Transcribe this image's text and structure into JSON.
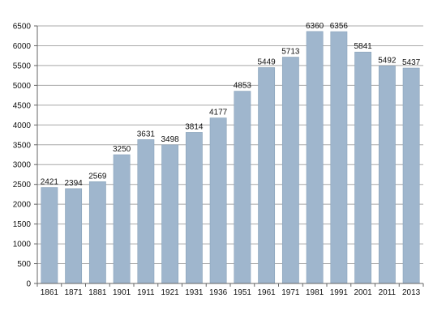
{
  "chart_data": {
    "type": "bar",
    "categories": [
      "1861",
      "1871",
      "1881",
      "1901",
      "1911",
      "1921",
      "1931",
      "1936",
      "1951",
      "1961",
      "1971",
      "1981",
      "1991",
      "2001",
      "2011",
      "2013"
    ],
    "values": [
      2421,
      2394,
      2569,
      3250,
      3631,
      3498,
      3814,
      4177,
      4853,
      5449,
      5713,
      6360,
      6356,
      5841,
      5492,
      5437
    ],
    "ylim": [
      0,
      6500
    ],
    "y_ticks": [
      0,
      500,
      1000,
      1500,
      2000,
      2500,
      3000,
      3500,
      4000,
      4500,
      5000,
      5500,
      6000,
      6500
    ],
    "grid": true,
    "title": "",
    "xlabel": "",
    "ylabel": "",
    "data_labels": true,
    "colors": {
      "bar": "#9fb6cd",
      "bar_edge": "#8aa3bb",
      "grid": "#a8a8a8",
      "axis": "#666666",
      "text": "#111111"
    }
  }
}
